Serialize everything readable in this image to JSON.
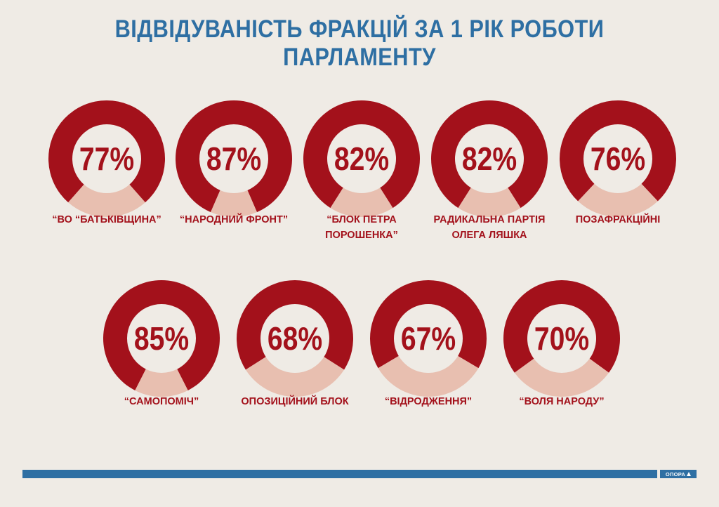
{
  "title": "ВІДВІДУВАНІСТЬ ФРАКЦІЙ ЗА 1 РІК РОБОТИ ПАРЛАМЕНТУ",
  "colors": {
    "filled": "#a3111b",
    "remainder": "#e8bfb0",
    "title": "#2e6fa3",
    "background": "#efebe5"
  },
  "chart_data": {
    "type": "pie",
    "title": "ВІДВІДУВАНІСТЬ ФРАКЦІЙ ЗА 1 РІК РОБОТИ ПАРЛАМЕНТУ",
    "categories": [
      "“ВО “БАТЬКІВЩИНА”",
      "“НАРОДНИЙ ФРОНТ”",
      "“БЛОК ПЕТРА ПОРОШЕНКА”",
      "РАДИКАЛЬНА ПАРТІЯ\nОЛЕГА ЛЯШКА",
      "ПОЗАФРАКЦІЙНІ",
      "“САМОПОМІЧ”",
      "ОПОЗИЦІЙНИЙ БЛОК",
      "“ВІДРОДЖЕННЯ”",
      "“ВОЛЯ НАРОДУ”"
    ],
    "values": [
      77,
      87,
      82,
      82,
      76,
      85,
      68,
      67,
      70
    ],
    "labels": [
      "77%",
      "87%",
      "82%",
      "82%",
      "76%",
      "85%",
      "68%",
      "67%",
      "70%"
    ]
  },
  "footer": {
    "logo_text": "ОПОРА"
  }
}
